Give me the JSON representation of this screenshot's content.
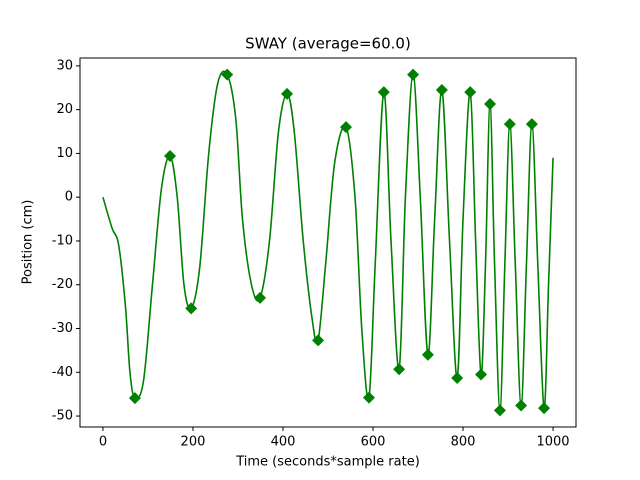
{
  "chart_data": {
    "type": "line",
    "title": "SWAY (average=60.0)",
    "x_label": "Time (seconds*sample rate)",
    "y_label": "Position (cm)",
    "color": "#008000",
    "x": [
      0,
      20,
      35,
      50,
      60,
      71,
      90,
      110,
      130,
      149,
      165,
      180,
      196,
      215,
      235,
      255,
      276,
      295,
      310,
      330,
      349,
      370,
      390,
      409,
      425,
      445,
      465,
      478,
      495,
      515,
      540,
      560,
      575,
      591,
      605,
      624,
      640,
      658,
      672,
      689,
      705,
      722,
      737,
      753,
      770,
      787,
      800,
      816,
      828,
      840,
      850,
      860,
      870,
      882,
      893,
      904,
      916,
      929,
      941,
      953,
      966,
      980,
      990,
      1000
    ],
    "values": [
      0,
      -7,
      -11,
      -25,
      -40,
      -45.9,
      -42,
      -20,
      2,
      9.4,
      0,
      -20,
      -25.4,
      -16,
      10,
      26,
      28,
      18,
      -5,
      -20,
      -23,
      -10,
      15,
      23.6,
      15,
      -10,
      -28,
      -32.7,
      -15,
      8,
      16,
      0,
      -30,
      -45.8,
      -15,
      24,
      -10,
      -39.3,
      0,
      28,
      0,
      -36,
      -5,
      24.5,
      -10,
      -41.3,
      -5,
      24,
      -10,
      -40.5,
      -15,
      21.3,
      -15,
      -48.7,
      -15,
      16.7,
      -15,
      -47.6,
      -15,
      16.7,
      -15,
      -48.2,
      -20,
      9
    ],
    "markers": {
      "x": [
        71,
        149,
        196,
        276,
        349,
        409,
        478,
        540,
        591,
        624,
        658,
        689,
        722,
        753,
        787,
        816,
        840,
        860,
        882,
        904,
        929,
        953,
        980
      ],
      "values": [
        -45.9,
        9.4,
        -25.4,
        28,
        -23,
        23.6,
        -32.7,
        16,
        -45.8,
        24,
        -39.3,
        28,
        -36,
        24.5,
        -41.3,
        24,
        -40.5,
        21.3,
        -48.7,
        16.7,
        -47.6,
        16.7,
        -48.2
      ]
    },
    "xlim": [
      -51,
      1051
    ],
    "ylim": [
      -52.5,
      31.8
    ],
    "xticks": [
      0,
      200,
      400,
      600,
      800,
      1000
    ],
    "yticks": [
      -50,
      -40,
      -30,
      -20,
      -10,
      0,
      10,
      20,
      30
    ]
  }
}
